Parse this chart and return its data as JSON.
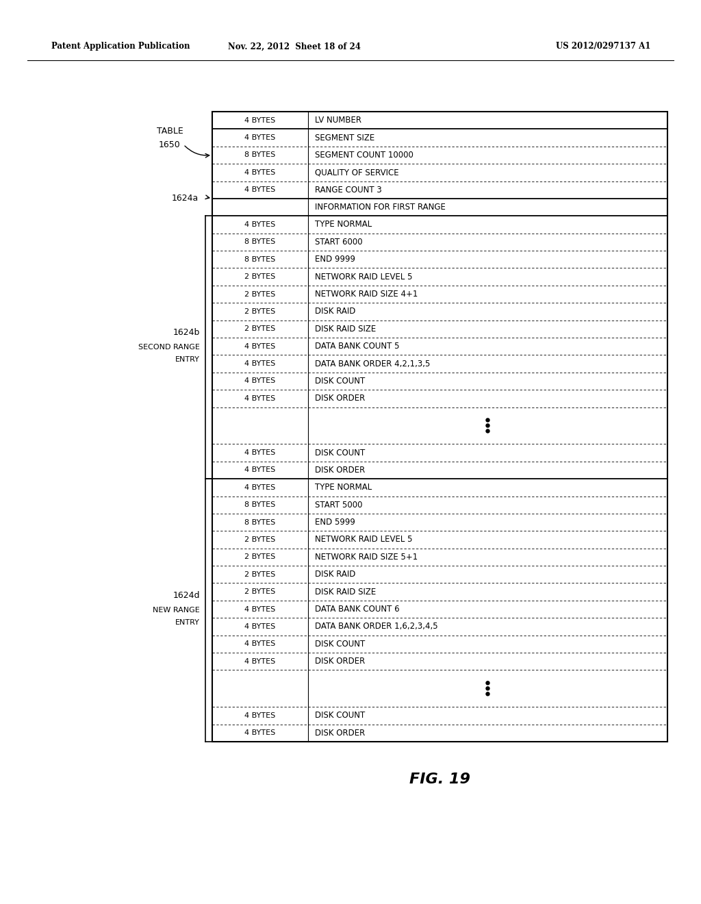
{
  "header_text_left": "Patent Application Publication",
  "header_text_mid": "Nov. 22, 2012  Sheet 18 of 24",
  "header_text_right": "US 2012/0297137 A1",
  "fig_label": "FIG. 19",
  "rows": [
    {
      "bytes": "4 BYTES",
      "label": "LV NUMBER",
      "top_solid": true
    },
    {
      "bytes": "4 BYTES",
      "label": "SEGMENT SIZE",
      "top_solid": true
    },
    {
      "bytes": "8 BYTES",
      "label": "SEGMENT COUNT 10000"
    },
    {
      "bytes": "4 BYTES",
      "label": "QUALITY OF SERVICE"
    },
    {
      "bytes": "4 BYTES",
      "label": "RANGE COUNT 3"
    },
    {
      "bytes": "",
      "label": "INFORMATION FOR FIRST RANGE",
      "top_solid": true
    },
    {
      "bytes": "4 BYTES",
      "label": "TYPE NORMAL",
      "top_solid": true
    },
    {
      "bytes": "8 BYTES",
      "label": "START 6000"
    },
    {
      "bytes": "8 BYTES",
      "label": "END 9999"
    },
    {
      "bytes": "2 BYTES",
      "label": "NETWORK RAID LEVEL 5"
    },
    {
      "bytes": "2 BYTES",
      "label": "NETWORK RAID SIZE 4+1"
    },
    {
      "bytes": "2 BYTES",
      "label": "DISK RAID"
    },
    {
      "bytes": "2 BYTES",
      "label": "DISK RAID SIZE"
    },
    {
      "bytes": "4 BYTES",
      "label": "DATA BANK COUNT 5"
    },
    {
      "bytes": "4 BYTES",
      "label": "DATA BANK ORDER 4,2,1,3,5"
    },
    {
      "bytes": "4 BYTES",
      "label": "DISK COUNT"
    },
    {
      "bytes": "4 BYTES",
      "label": "DISK ORDER"
    },
    {
      "bytes": "",
      "label": "",
      "dots": true
    },
    {
      "bytes": "4 BYTES",
      "label": "DISK COUNT"
    },
    {
      "bytes": "4 BYTES",
      "label": "DISK ORDER"
    },
    {
      "bytes": "4 BYTES",
      "label": "TYPE NORMAL",
      "top_solid": true
    },
    {
      "bytes": "8 BYTES",
      "label": "START 5000"
    },
    {
      "bytes": "8 BYTES",
      "label": "END 5999"
    },
    {
      "bytes": "2 BYTES",
      "label": "NETWORK RAID LEVEL 5"
    },
    {
      "bytes": "2 BYTES",
      "label": "NETWORK RAID SIZE 5+1"
    },
    {
      "bytes": "2 BYTES",
      "label": "DISK RAID"
    },
    {
      "bytes": "2 BYTES",
      "label": "DISK RAID SIZE"
    },
    {
      "bytes": "4 BYTES",
      "label": "DATA BANK COUNT 6"
    },
    {
      "bytes": "4 BYTES",
      "label": "DATA BANK ORDER 1,6,2,3,4,5"
    },
    {
      "bytes": "4 BYTES",
      "label": "DISK COUNT"
    },
    {
      "bytes": "4 BYTES",
      "label": "DISK ORDER"
    },
    {
      "bytes": "",
      "label": "",
      "dots": true
    },
    {
      "bytes": "4 BYTES",
      "label": "DISK COUNT"
    },
    {
      "bytes": "4 BYTES",
      "label": "DISK ORDER"
    }
  ],
  "bg_color": "#ffffff",
  "text_color": "#000000"
}
